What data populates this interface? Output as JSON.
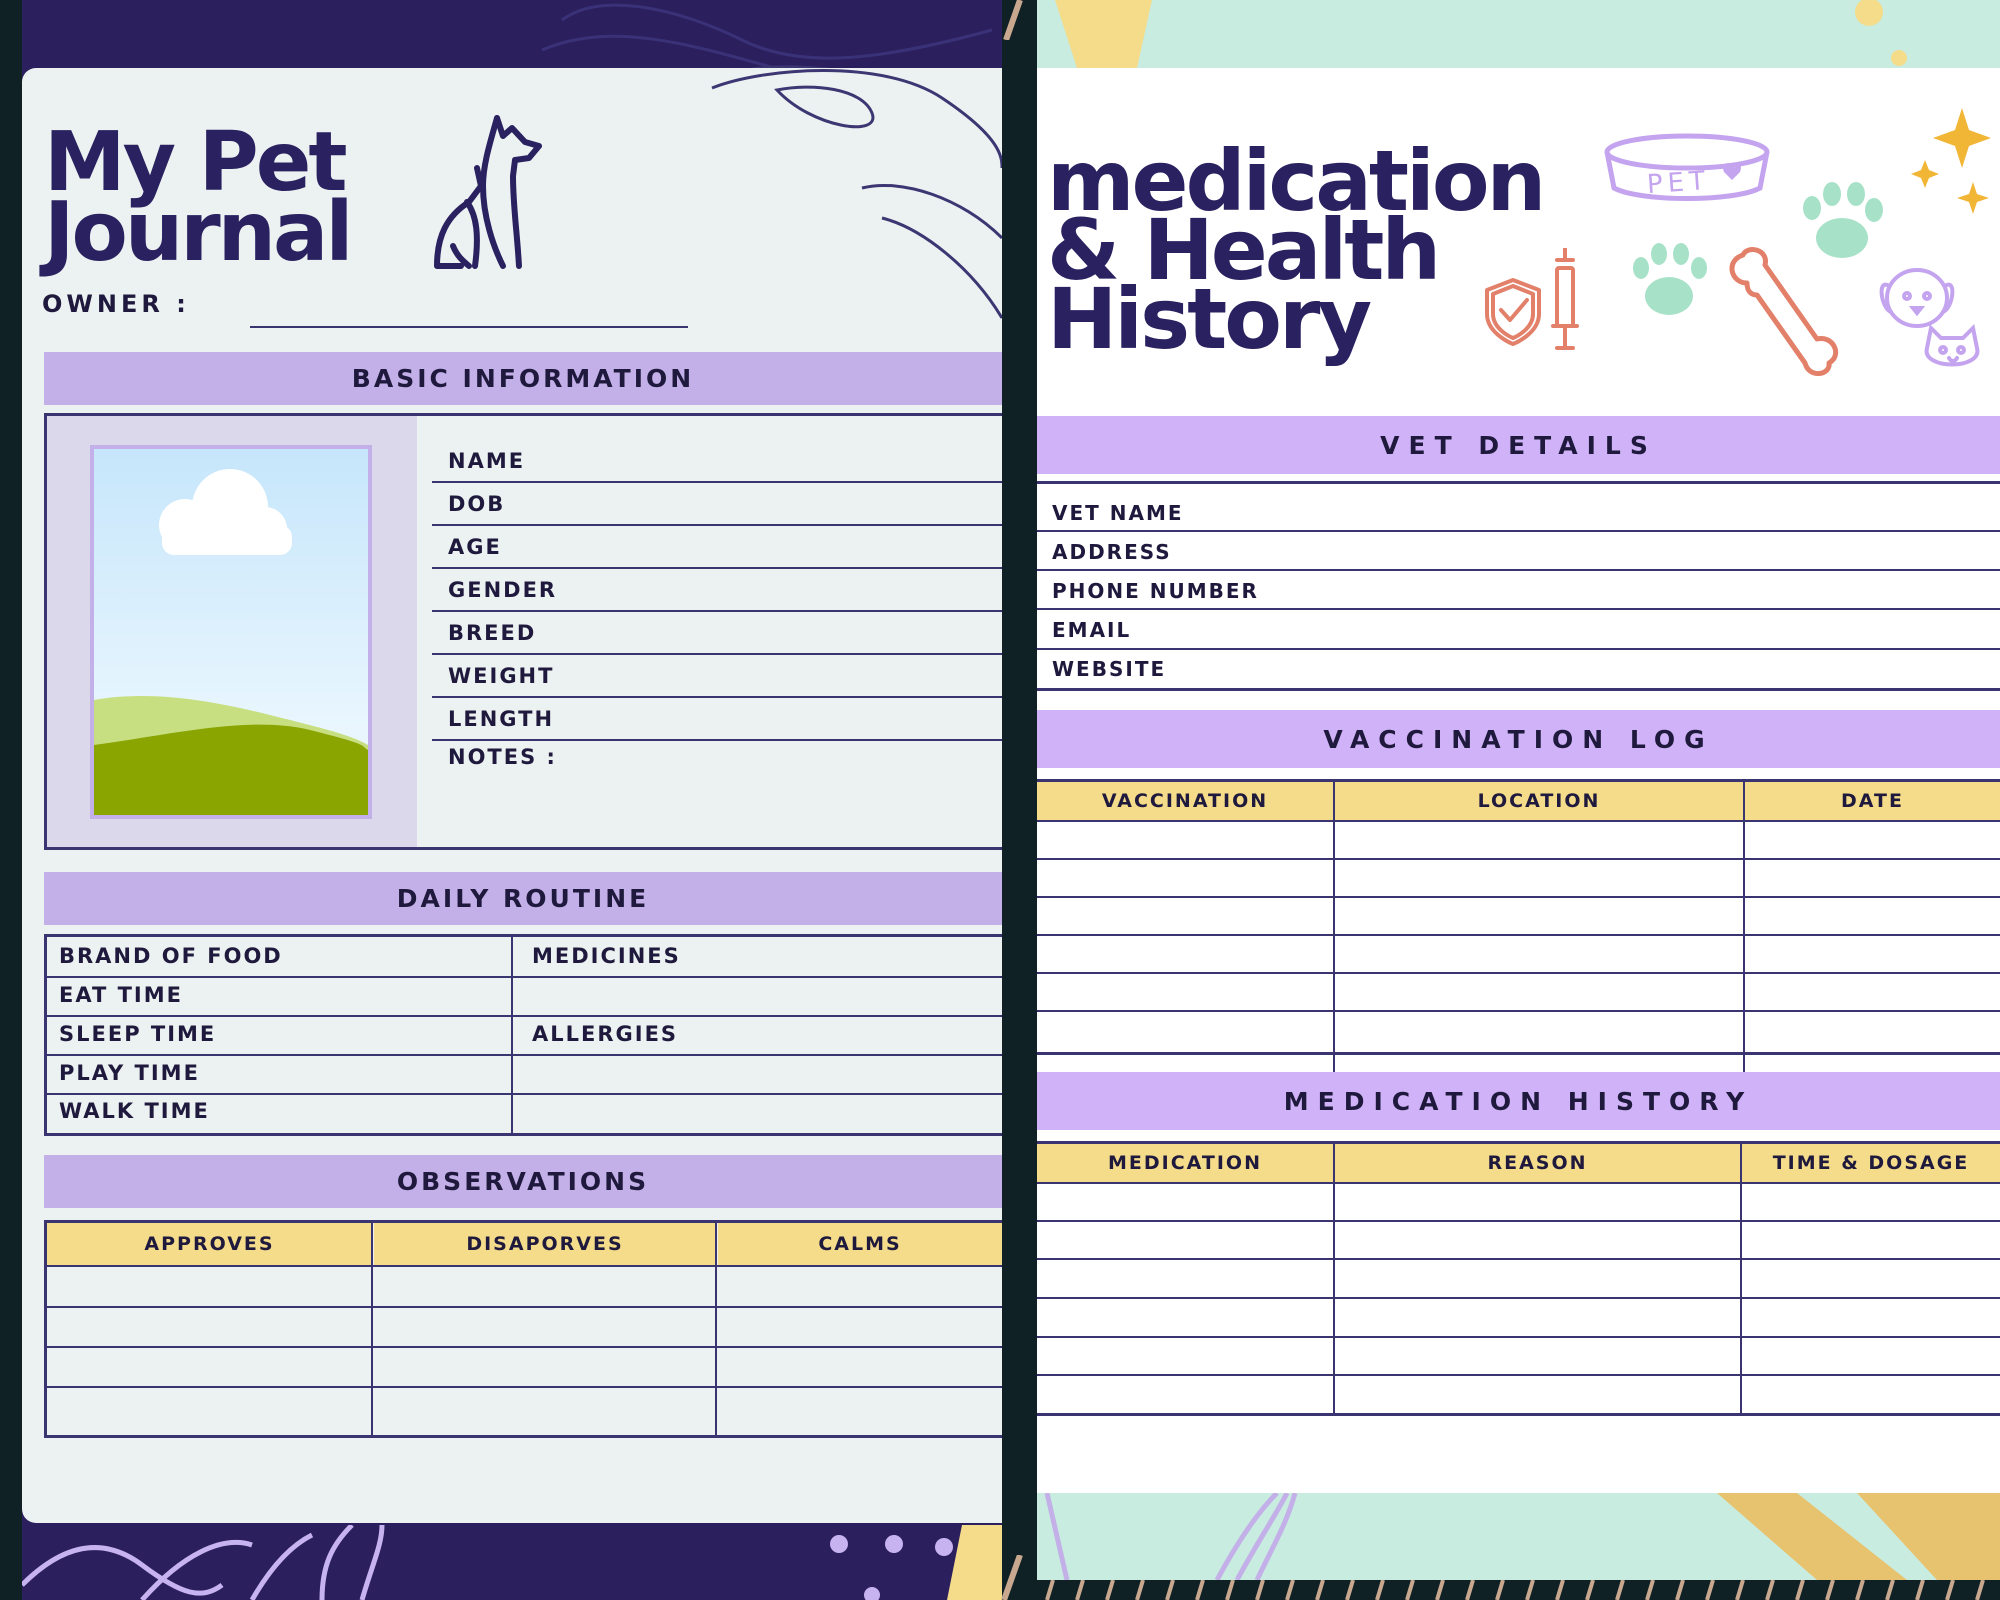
{
  "left": {
    "title_line1": "My Pet",
    "title_line2": "Journal",
    "owner_label": "OWNER :",
    "basic_info": {
      "heading": "BASIC INFORMATION",
      "fields": [
        "NAME",
        "DOB",
        "AGE",
        "GENDER",
        "BREED",
        "WEIGHT",
        "LENGTH"
      ],
      "notes_label": "NOTES :"
    },
    "daily_routine": {
      "heading": "DAILY ROUTINE",
      "left_fields": [
        "BRAND OF FOOD",
        "EAT TIME",
        "SLEEP TIME",
        "PLAY TIME",
        "WALK TIME"
      ],
      "right_fields": [
        "MEDICINES",
        "",
        "ALLERGIES",
        "",
        ""
      ]
    },
    "observations": {
      "heading": "OBSERVATIONS",
      "columns": [
        "APPROVES",
        "DISAPORVES",
        "CALMS"
      ]
    }
  },
  "right": {
    "title_line1": "medication",
    "title_line2": "& Health",
    "title_line3": "History",
    "bowl_text": "PET",
    "vet_details": {
      "heading": "VET DETAILS",
      "fields": [
        "VET NAME",
        "ADDRESS",
        "PHONE NUMBER",
        "EMAIL",
        "WEBSITE"
      ]
    },
    "vaccination_log": {
      "heading": "VACCINATION LOG",
      "columns": [
        "VACCINATION",
        "LOCATION",
        "DATE"
      ]
    },
    "medication_history": {
      "heading": "MEDICATION HISTORY",
      "columns": [
        "MEDICATION",
        "REASON",
        "TIME & DOSAGE"
      ]
    }
  },
  "colors": {
    "navy": "#2a2160",
    "lavender_band": "#c4b0e8",
    "yellow_header": "#f4dc8a",
    "mint": "#c8ece0"
  }
}
